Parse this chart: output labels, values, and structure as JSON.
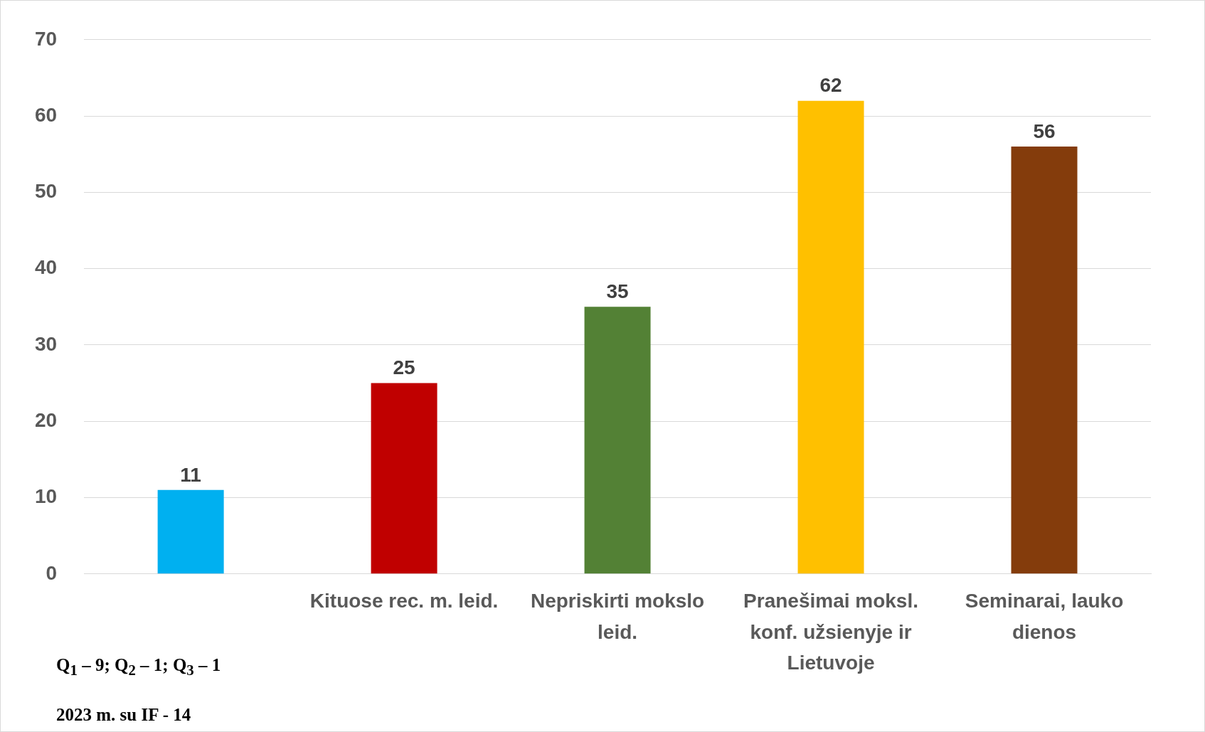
{
  "chart_data": {
    "type": "bar",
    "categories": [
      null,
      "Kituose rec. m. leid.",
      "Nepriskirti mokslo leid.",
      "Pranešimai moksl. konf. užsienyje ir Lietuvoje",
      "Seminarai, lauko dienos"
    ],
    "values": [
      11,
      25,
      35,
      62,
      56
    ],
    "colors": [
      "#00b0f0",
      "#c00000",
      "#538135",
      "#ffc000",
      "#843c0c"
    ],
    "ylim": [
      0,
      70
    ],
    "yticks": [
      0,
      10,
      20,
      30,
      40,
      50,
      60,
      70
    ],
    "grid": "y",
    "data_labels": true,
    "legend": false,
    "annotations": [
      "Q$_{1}$ – 9; Q$_{2}$ – 1; Q$_{3}$ – 1",
      "2023 m. su IF - 14"
    ]
  }
}
